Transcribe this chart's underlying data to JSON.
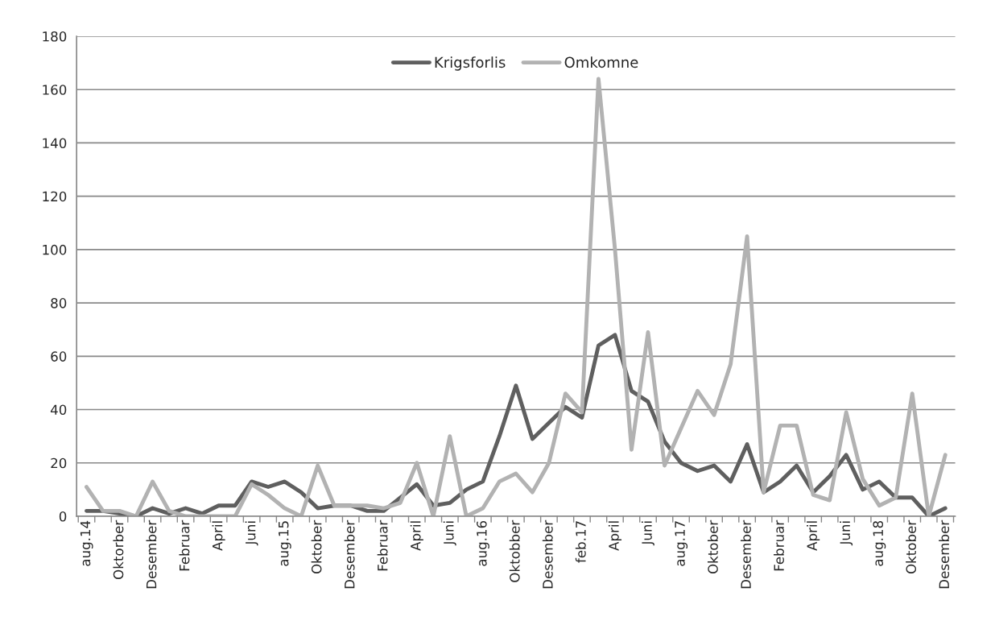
{
  "chart_data": {
    "type": "line",
    "categories": [
      "aug.14",
      null,
      "Oktorber",
      null,
      "Desember",
      null,
      "Februar",
      null,
      "April",
      null,
      "Juni",
      null,
      "aug.15",
      null,
      "Oktober",
      null,
      "Desember",
      null,
      "Februar",
      null,
      "April",
      null,
      "Juni",
      null,
      "aug.16",
      null,
      "Oktobber",
      null,
      "Desember",
      null,
      "feb.17",
      null,
      "April",
      null,
      "Juni",
      null,
      "aug.17",
      null,
      "Oktober",
      null,
      "Desember",
      null,
      "Februar",
      null,
      "April",
      null,
      "Juni",
      null,
      "aug.18",
      null,
      "Oktober",
      null,
      "Desember"
    ],
    "series": [
      {
        "name": "Krigsforlis",
        "color": "#5f5f5f",
        "values": [
          2,
          2,
          1,
          0,
          3,
          1,
          3,
          1,
          4,
          4,
          13,
          11,
          13,
          9,
          3,
          4,
          4,
          2,
          2,
          7,
          12,
          4,
          5,
          10,
          13,
          30,
          49,
          29,
          35,
          41,
          37,
          64,
          68,
          47,
          43,
          28,
          20,
          17,
          19,
          13,
          27,
          9,
          13,
          19,
          9,
          15,
          23,
          10,
          13,
          7,
          7,
          0,
          3
        ]
      },
      {
        "name": "Omkomne",
        "color": "#b2b2b2",
        "values": [
          11,
          2,
          2,
          0,
          13,
          2,
          0,
          0,
          0,
          0,
          12,
          8,
          3,
          0,
          19,
          4,
          4,
          4,
          3,
          5,
          20,
          0,
          30,
          0,
          3,
          13,
          16,
          9,
          20,
          46,
          39,
          164,
          100,
          25,
          69,
          19,
          33,
          47,
          38,
          57,
          105,
          9,
          34,
          34,
          8,
          6,
          39,
          14,
          4,
          7,
          46,
          0,
          23
        ]
      }
    ],
    "ylim": [
      0,
      180
    ],
    "yticks": [
      0,
      20,
      40,
      60,
      80,
      100,
      120,
      140,
      160,
      180
    ],
    "grid": "y",
    "legend": "top",
    "marker": "none",
    "line_style": "solid"
  }
}
